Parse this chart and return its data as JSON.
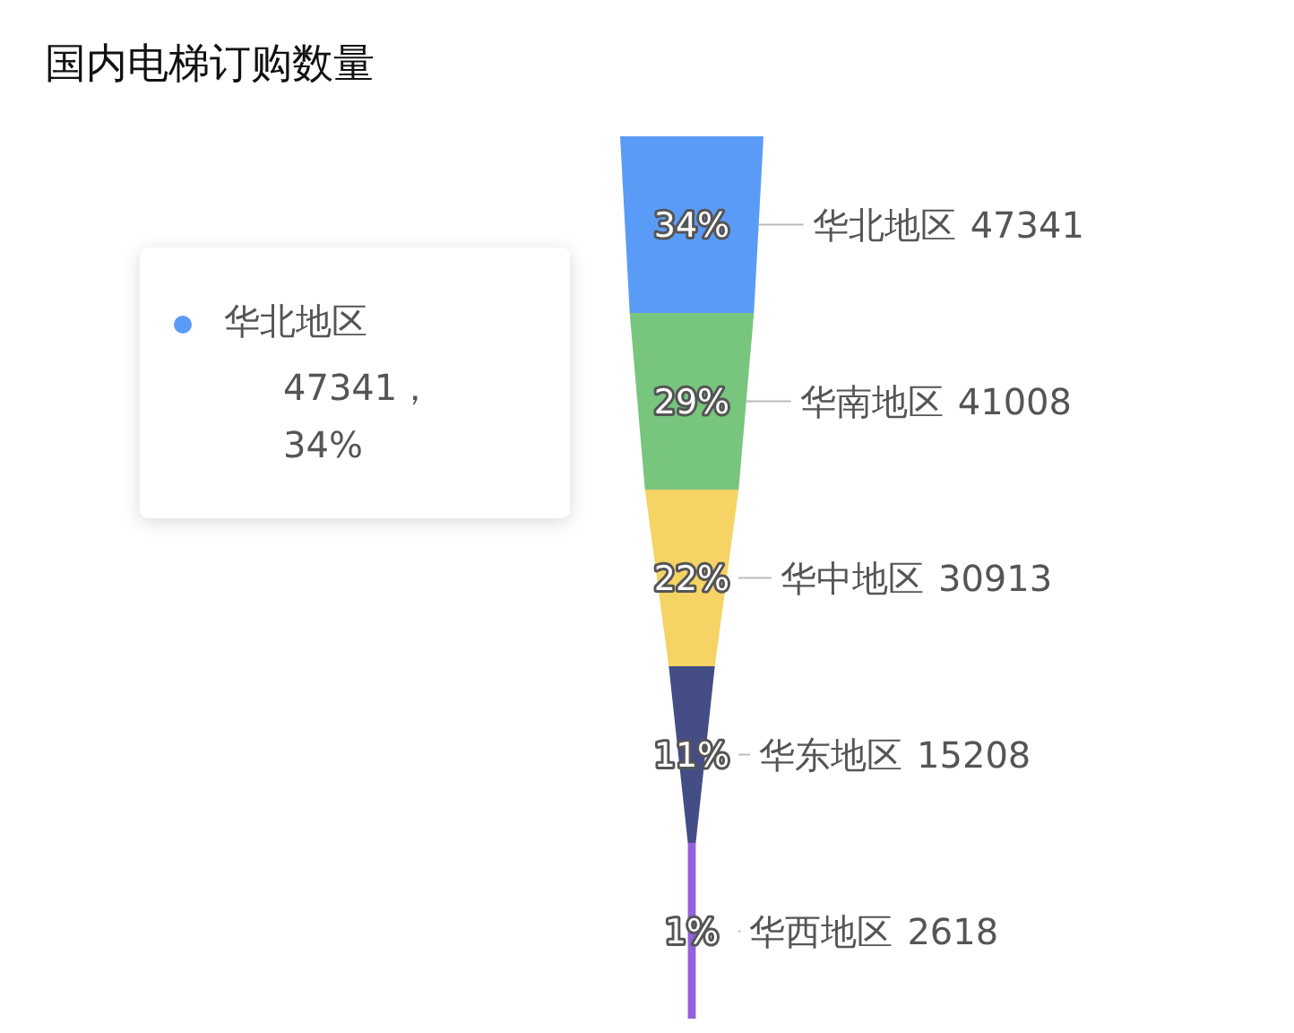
{
  "chart_data": {
    "type": "other",
    "title": "国内电梯订购数量",
    "categories": [
      "华北地区",
      "华南地区",
      "华中地区",
      "华东地区",
      "华西地区"
    ],
    "values": [
      47341,
      41008,
      30913,
      15208,
      2618
    ],
    "data_labels": true,
    "colors": [
      "#5b9bf8",
      "#78c57e",
      "#f5d365",
      "#444d85",
      "#9461dc"
    ],
    "annotations": [
      {
        "text": "34%",
        "x": "华北地区"
      },
      {
        "text": "29%",
        "x": "华南地区"
      },
      {
        "text": "22%",
        "x": "华中地区"
      },
      {
        "text": "11%",
        "x": "华东地区"
      },
      {
        "text": "1%",
        "x": "华西地区"
      },
      "华北地区",
      "47341，",
      "34%"
    ]
  }
}
